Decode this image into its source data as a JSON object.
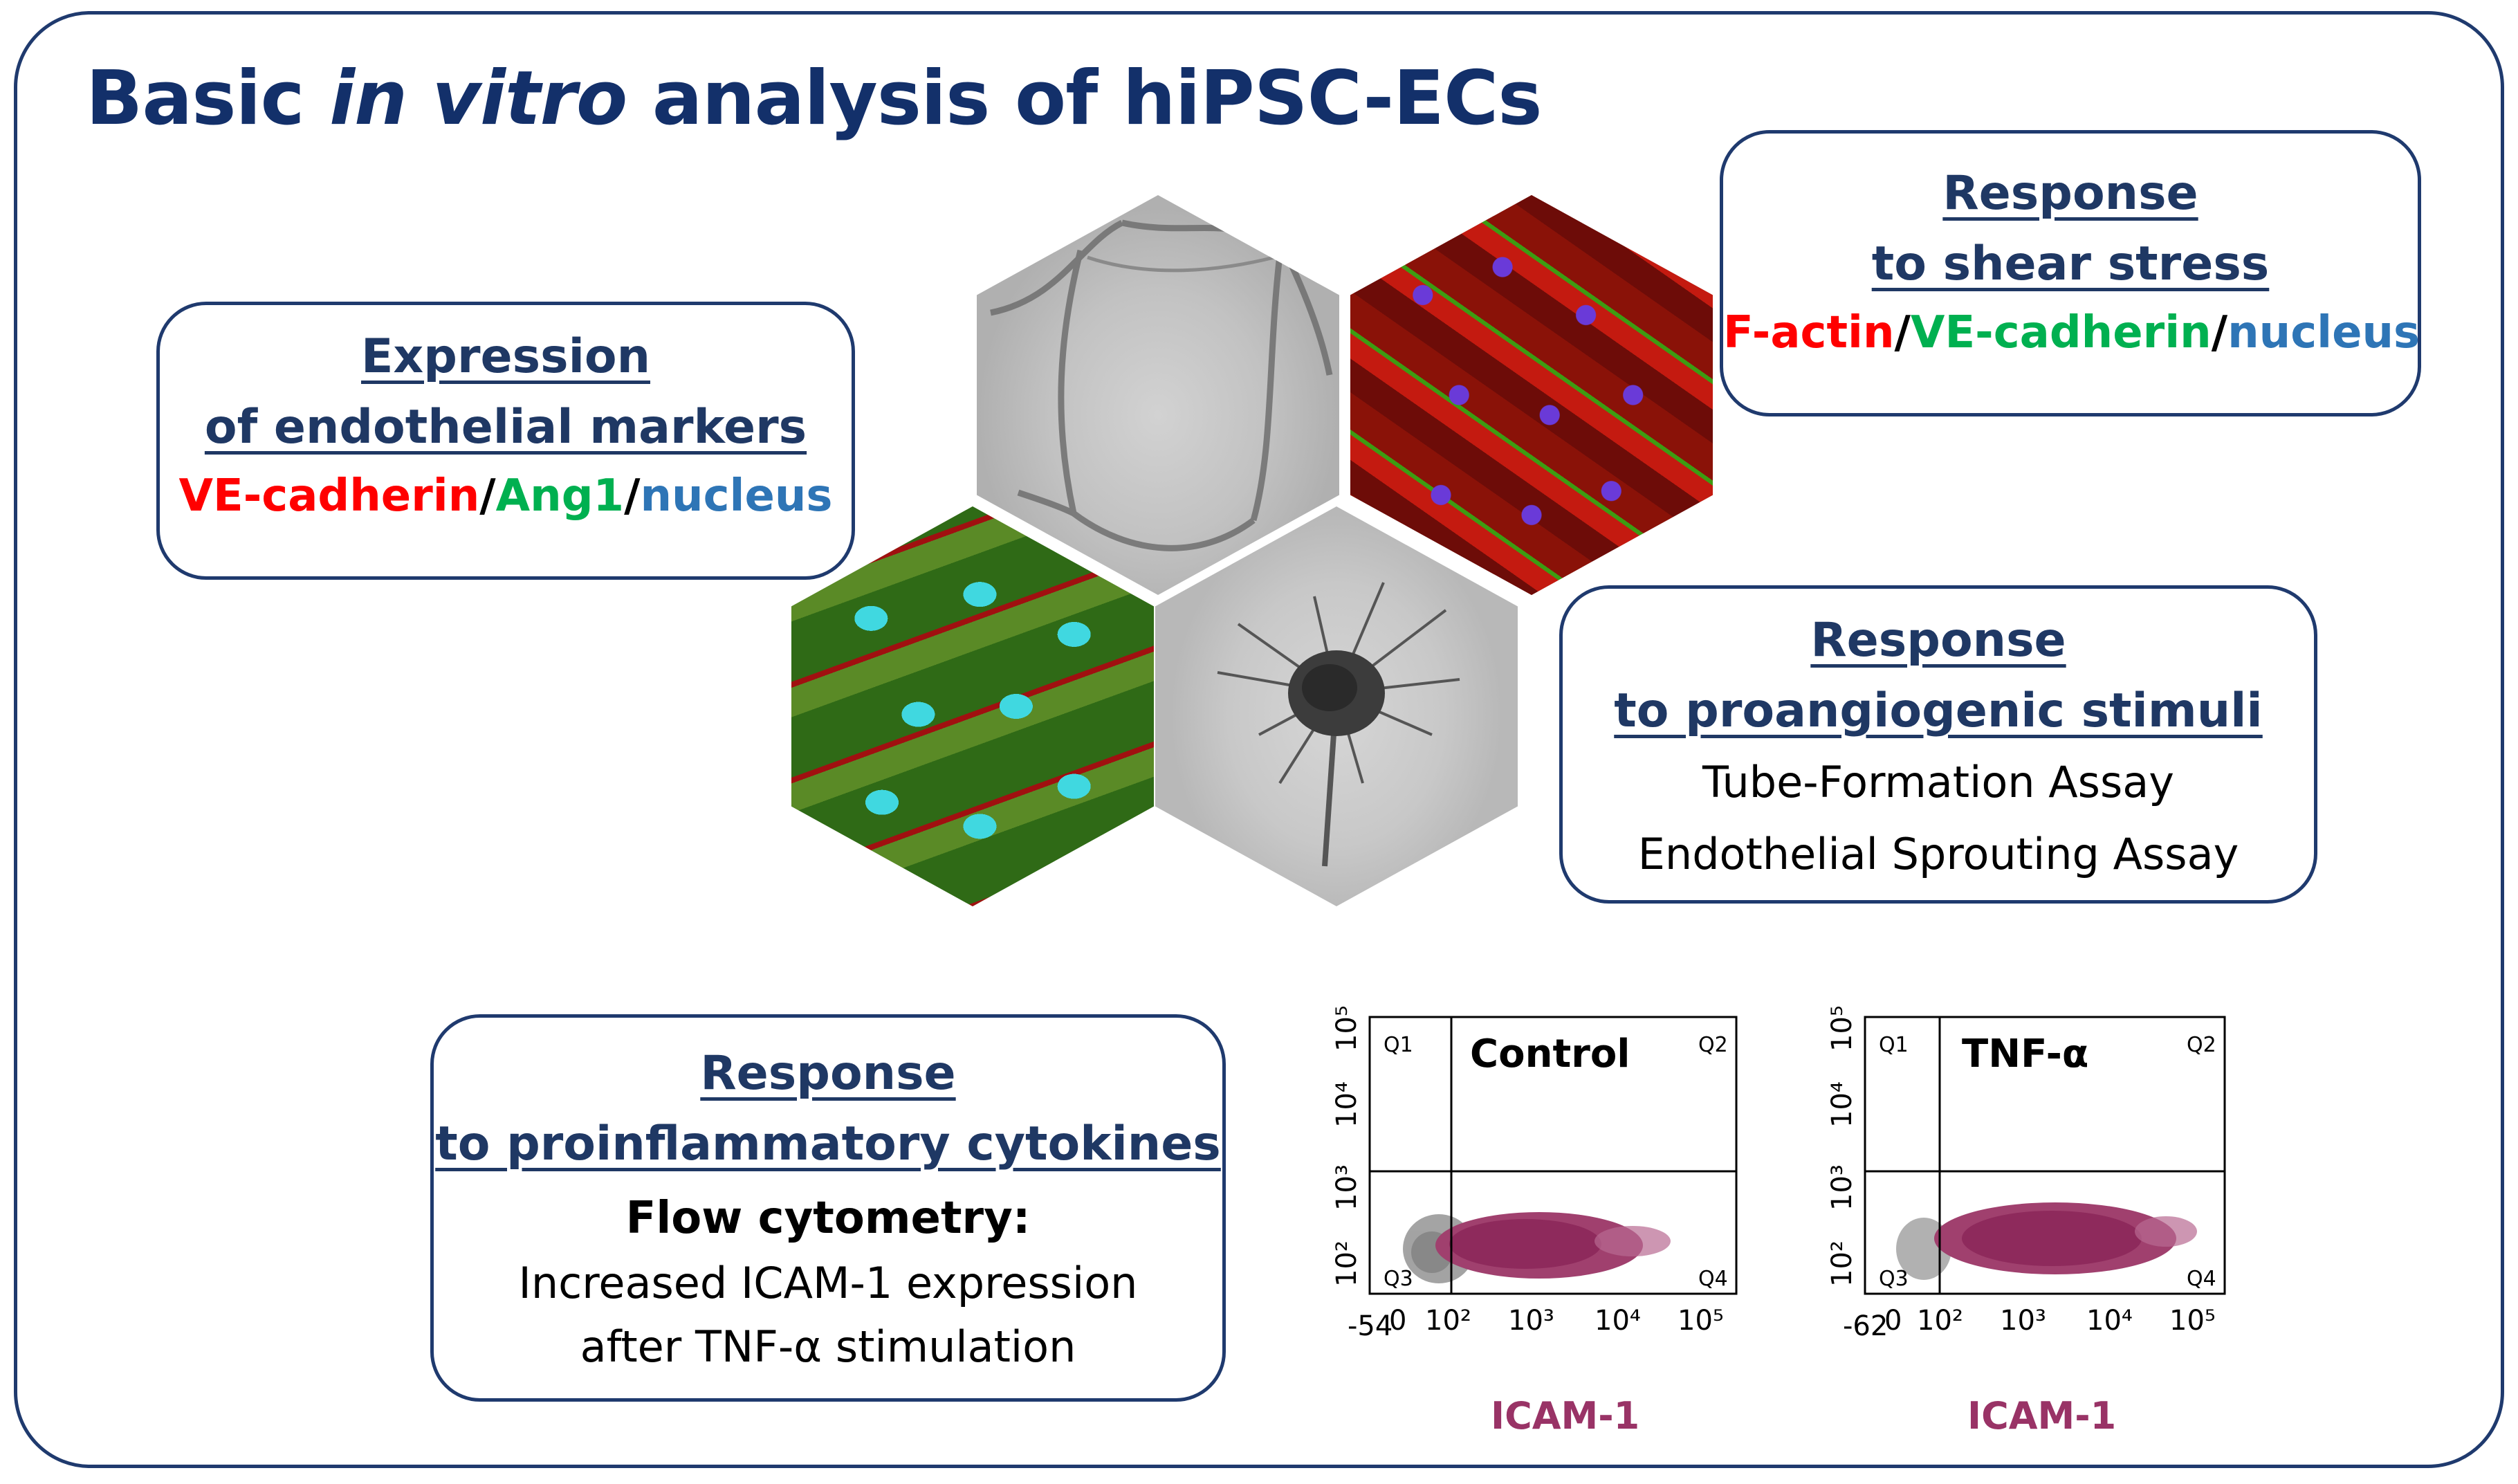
{
  "title": {
    "prefix": "Basic ",
    "italic": "in vitro",
    "suffix": " analysis of hiPSC-ECs"
  },
  "boxes": {
    "markers": {
      "heading1": "Expression",
      "heading2": "of endothelial markers",
      "stain": [
        "VE-cadherin",
        "/",
        "Ang1",
        "/",
        "nucleus"
      ]
    },
    "shear": {
      "heading1": "Response",
      "heading2": "to shear stress",
      "stain": [
        "F-actin",
        "/",
        "VE-cadherin",
        "/",
        "nucleus"
      ]
    },
    "proangiogenic": {
      "heading1": "Response",
      "heading2": "to proangiogenic stimuli",
      "line1": "Tube-Formation Assay",
      "line2": "Endothelial Sprouting Assay"
    },
    "proinflammatory": {
      "heading1": "Response",
      "heading2": "to proinflammatory cytokines",
      "bold_line": "Flow cytometry:",
      "line1": "Increased ICAM-1 expression",
      "line2": "after TNF-α stimulation"
    }
  },
  "colors": {
    "frame": "#1f3a6e",
    "title": "#13306a",
    "red": "#ff0000",
    "green": "#00b050",
    "blue": "#2e75b6",
    "dots": "#993366"
  },
  "plots": [
    {
      "title": "Control",
      "xlabel": "ICAM-1",
      "xmin_label": "-54",
      "quadrants": [
        "Q1",
        "Q2",
        "Q3",
        "Q4"
      ],
      "x_ticks": [
        "0",
        "10²",
        "10³",
        "10⁴",
        "10⁵"
      ],
      "y_ticks": [
        "10²",
        "10³",
        "10⁴",
        "10⁵"
      ]
    },
    {
      "title": "TNF-α",
      "xlabel": "ICAM-1",
      "xmin_label": "-62",
      "quadrants": [
        "Q1",
        "Q2",
        "Q3",
        "Q4"
      ],
      "x_ticks": [
        "0",
        "10²",
        "10³",
        "10⁴",
        "10⁵"
      ],
      "y_ticks": [
        "10²",
        "10³",
        "10⁴",
        "10⁵"
      ]
    }
  ]
}
